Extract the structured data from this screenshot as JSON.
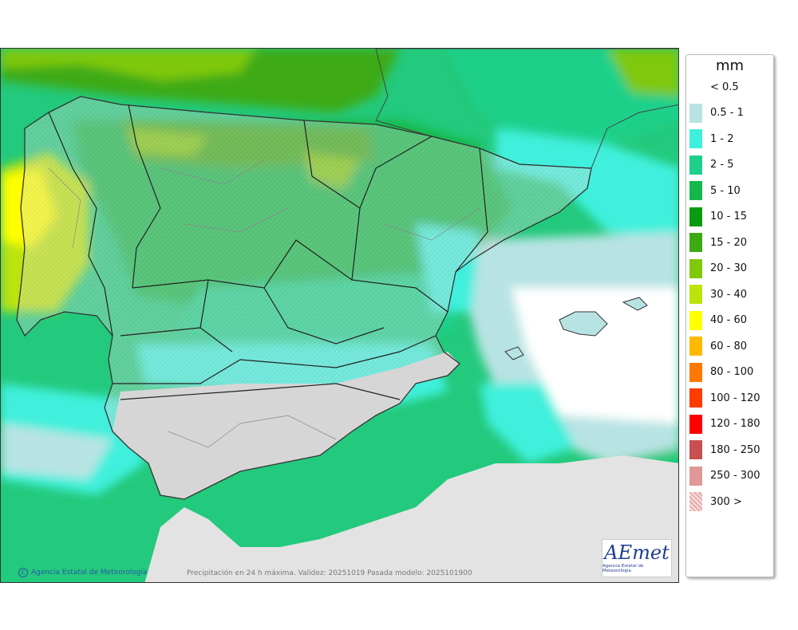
{
  "legend": {
    "unit": "mm",
    "items": [
      {
        "label": "< 0.5",
        "color": "#ffffff"
      },
      {
        "label": "0.5 - 1",
        "color": "#b8e3e3"
      },
      {
        "label": "1 - 2",
        "color": "#3ff0dc"
      },
      {
        "label": "2 - 5",
        "color": "#1fd08a"
      },
      {
        "label": "5 - 10",
        "color": "#13b84a"
      },
      {
        "label": "10 - 15",
        "color": "#0a9a12"
      },
      {
        "label": "15 - 20",
        "color": "#3daa12"
      },
      {
        "label": "20 - 30",
        "color": "#7fc80a"
      },
      {
        "label": "30 - 40",
        "color": "#bce30a"
      },
      {
        "label": "40 - 60",
        "color": "#ffff00"
      },
      {
        "label": "60 - 80",
        "color": "#ffb800"
      },
      {
        "label": "80 - 100",
        "color": "#ff7800"
      },
      {
        "label": "100 - 120",
        "color": "#ff3c00"
      },
      {
        "label": "120 - 180",
        "color": "#ff0000"
      },
      {
        "label": "180 - 250",
        "color": "#c85050"
      },
      {
        "label": "250 - 300",
        "color": "#e09898"
      },
      {
        "label": "300 >",
        "color": "#f0c8c8"
      }
    ]
  },
  "map": {
    "credit": "Agencia Estatal de Meteorología",
    "credit_symbol": "C",
    "caption": "Precipitación en 24 h máxima. Validez: 20251019 Pasada modelo: 2025101900",
    "logo_main": "AEmet",
    "logo_sub": "Agencia Estatal de Meteorología"
  }
}
